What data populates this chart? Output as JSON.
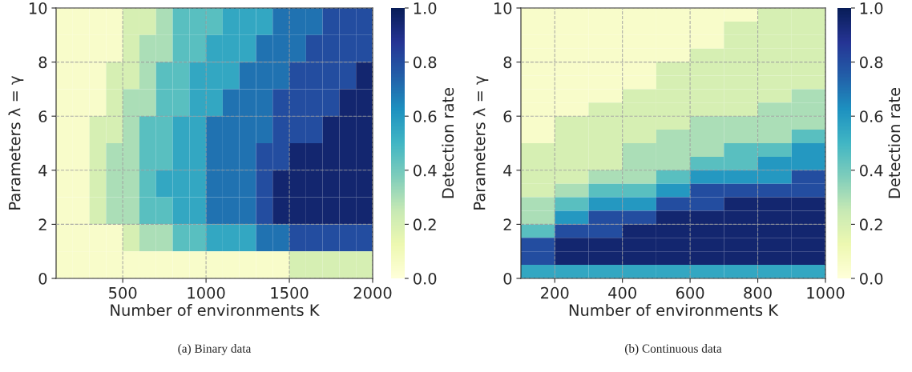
{
  "chart_data": [
    {
      "type": "heatmap",
      "xlabel": "Number of environments K",
      "ylabel": "Parameters λ = γ",
      "clabel": "Detection rate",
      "annotations": [
        "(a) Binary data"
      ],
      "x": [
        150,
        250,
        350,
        450,
        550,
        650,
        750,
        850,
        950,
        1050,
        1150,
        1250,
        1350,
        1450,
        1550,
        1650,
        1750,
        1850,
        1950
      ],
      "y": [
        9.5,
        8.5,
        7.5,
        6.5,
        5.5,
        4.5,
        3.5,
        2.5,
        1.5,
        0.5
      ],
      "cells": [
        [
          0.05,
          0.05,
          0.05,
          0.05,
          0.2,
          0.2,
          0.3,
          0.45,
          0.45,
          0.45,
          0.55,
          0.55,
          0.55,
          0.7,
          0.7,
          0.7,
          0.8,
          0.8,
          0.8
        ],
        [
          0.05,
          0.05,
          0.05,
          0.05,
          0.2,
          0.3,
          0.3,
          0.45,
          0.45,
          0.55,
          0.55,
          0.55,
          0.7,
          0.7,
          0.7,
          0.8,
          0.8,
          0.8,
          0.8
        ],
        [
          0.05,
          0.05,
          0.05,
          0.2,
          0.2,
          0.3,
          0.45,
          0.45,
          0.55,
          0.55,
          0.55,
          0.7,
          0.7,
          0.7,
          0.8,
          0.8,
          0.8,
          0.8,
          0.95
        ],
        [
          0.05,
          0.05,
          0.05,
          0.2,
          0.3,
          0.3,
          0.45,
          0.45,
          0.55,
          0.55,
          0.7,
          0.7,
          0.7,
          0.8,
          0.8,
          0.8,
          0.8,
          0.95,
          0.95
        ],
        [
          0.05,
          0.05,
          0.2,
          0.2,
          0.3,
          0.45,
          0.45,
          0.55,
          0.55,
          0.7,
          0.7,
          0.7,
          0.7,
          0.8,
          0.8,
          0.8,
          0.95,
          0.95,
          0.95
        ],
        [
          0.05,
          0.05,
          0.2,
          0.3,
          0.3,
          0.45,
          0.45,
          0.55,
          0.55,
          0.7,
          0.7,
          0.7,
          0.8,
          0.8,
          0.95,
          0.95,
          0.95,
          0.95,
          0.95
        ],
        [
          0.05,
          0.05,
          0.2,
          0.3,
          0.3,
          0.45,
          0.55,
          0.55,
          0.55,
          0.7,
          0.7,
          0.7,
          0.8,
          0.95,
          0.95,
          0.95,
          0.95,
          0.95,
          0.95
        ],
        [
          0.05,
          0.05,
          0.2,
          0.3,
          0.3,
          0.45,
          0.45,
          0.55,
          0.55,
          0.7,
          0.7,
          0.7,
          0.8,
          0.95,
          0.95,
          0.95,
          0.95,
          0.95,
          0.95
        ],
        [
          0.05,
          0.05,
          0.05,
          0.05,
          0.2,
          0.3,
          0.3,
          0.45,
          0.45,
          0.55,
          0.55,
          0.55,
          0.7,
          0.7,
          0.8,
          0.8,
          0.8,
          0.8,
          0.8
        ],
        [
          0.05,
          0.05,
          0.05,
          0.05,
          0.05,
          0.05,
          0.05,
          0.05,
          0.05,
          0.05,
          0.05,
          0.05,
          0.05,
          0.05,
          0.2,
          0.2,
          0.2,
          0.2,
          0.2
        ]
      ],
      "clim": [
        0,
        1
      ],
      "cticks": [
        {
          "value": 0,
          "label": "0.0"
        },
        {
          "value": 0.2,
          "label": "0.2"
        },
        {
          "value": 0.4,
          "label": "0.4"
        },
        {
          "value": 0.6,
          "label": "0.6"
        },
        {
          "value": 0.8,
          "label": "0.8"
        },
        {
          "value": 1,
          "label": "1.0"
        }
      ],
      "xlim": [
        100,
        2000
      ],
      "xticks": [
        500,
        1000,
        1500,
        2000
      ],
      "ylim": [
        0,
        10
      ],
      "yticks": [
        0,
        2,
        4,
        6,
        8,
        10
      ],
      "grid": true
    },
    {
      "type": "heatmap",
      "xlabel": "Number of environments K",
      "ylabel": "Parameters λ = γ",
      "clabel": "Detection rate",
      "annotations": [
        "(b) Continuous data"
      ],
      "x": [
        150,
        250,
        350,
        450,
        550,
        650,
        750,
        850,
        950
      ],
      "y": [
        9.75,
        9.25,
        8.75,
        8.25,
        7.75,
        7.25,
        6.75,
        6.25,
        5.75,
        5.25,
        4.75,
        4.25,
        3.75,
        3.25,
        2.75,
        2.25,
        1.75,
        1.25,
        0.75,
        0.25
      ],
      "cells": [
        [
          0.05,
          0.05,
          0.05,
          0.05,
          0.05,
          0.05,
          0.05,
          0.2,
          0.2
        ],
        [
          0.05,
          0.05,
          0.05,
          0.05,
          0.05,
          0.05,
          0.2,
          0.2,
          0.2
        ],
        [
          0.05,
          0.05,
          0.05,
          0.05,
          0.05,
          0.05,
          0.2,
          0.2,
          0.2
        ],
        [
          0.05,
          0.05,
          0.05,
          0.05,
          0.05,
          0.2,
          0.2,
          0.2,
          0.2
        ],
        [
          0.05,
          0.05,
          0.05,
          0.05,
          0.2,
          0.2,
          0.2,
          0.2,
          0.2
        ],
        [
          0.05,
          0.05,
          0.05,
          0.05,
          0.2,
          0.2,
          0.2,
          0.2,
          0.2
        ],
        [
          0.05,
          0.05,
          0.05,
          0.2,
          0.2,
          0.2,
          0.2,
          0.2,
          0.3
        ],
        [
          0.05,
          0.05,
          0.2,
          0.2,
          0.2,
          0.2,
          0.2,
          0.3,
          0.3
        ],
        [
          0.05,
          0.2,
          0.2,
          0.2,
          0.2,
          0.3,
          0.3,
          0.3,
          0.3
        ],
        [
          0.05,
          0.2,
          0.2,
          0.2,
          0.3,
          0.3,
          0.3,
          0.3,
          0.45
        ],
        [
          0.2,
          0.2,
          0.2,
          0.3,
          0.3,
          0.3,
          0.45,
          0.45,
          0.6
        ],
        [
          0.2,
          0.2,
          0.2,
          0.3,
          0.3,
          0.45,
          0.45,
          0.6,
          0.6
        ],
        [
          0.2,
          0.2,
          0.3,
          0.3,
          0.45,
          0.6,
          0.6,
          0.6,
          0.8
        ],
        [
          0.2,
          0.3,
          0.45,
          0.45,
          0.6,
          0.8,
          0.8,
          0.8,
          0.8
        ],
        [
          0.3,
          0.45,
          0.6,
          0.6,
          0.8,
          0.8,
          0.95,
          0.95,
          0.95
        ],
        [
          0.3,
          0.6,
          0.8,
          0.8,
          0.95,
          0.95,
          0.95,
          0.95,
          0.95
        ],
        [
          0.45,
          0.8,
          0.8,
          0.95,
          0.95,
          0.95,
          0.95,
          0.95,
          0.95
        ],
        [
          0.8,
          0.95,
          0.95,
          0.95,
          0.95,
          0.95,
          0.95,
          0.95,
          0.95
        ],
        [
          0.8,
          0.95,
          0.95,
          0.95,
          0.95,
          0.95,
          0.95,
          0.95,
          0.95
        ],
        [
          0.55,
          0.55,
          0.55,
          0.55,
          0.55,
          0.55,
          0.55,
          0.55,
          0.55
        ]
      ],
      "clim": [
        0,
        1
      ],
      "cticks": [
        {
          "value": 0,
          "label": "0.0"
        },
        {
          "value": 0.2,
          "label": "0.2"
        },
        {
          "value": 0.4,
          "label": "0.4"
        },
        {
          "value": 0.6,
          "label": "0.6"
        },
        {
          "value": 0.8,
          "label": "0.8"
        },
        {
          "value": 1,
          "label": "1.0"
        }
      ],
      "xlim": [
        100,
        1000
      ],
      "xticks": [
        200,
        400,
        600,
        800,
        1000
      ],
      "ylim": [
        0,
        10
      ],
      "yticks": [
        0,
        2,
        4,
        6,
        8,
        10
      ],
      "grid": true
    }
  ]
}
